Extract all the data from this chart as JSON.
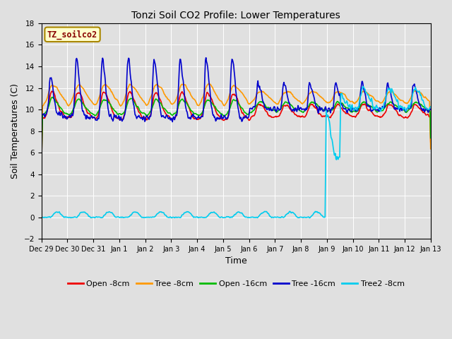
{
  "title": "Tonzi Soil CO2 Profile: Lower Temperatures",
  "xlabel": "Time",
  "ylabel": "Soil Temperatures (C)",
  "watermark": "TZ_soilco2",
  "ylim": [
    -2,
    18
  ],
  "yticks": [
    -2,
    0,
    2,
    4,
    6,
    8,
    10,
    12,
    14,
    16,
    18
  ],
  "bg_color": "#e0e0e0",
  "series": {
    "open_8cm": {
      "label": "Open -8cm",
      "color": "#ee0000",
      "lw": 1.2
    },
    "tree_8cm": {
      "label": "Tree -8cm",
      "color": "#ff9900",
      "lw": 1.2
    },
    "open_16cm": {
      "label": "Open -16cm",
      "color": "#00bb00",
      "lw": 1.2
    },
    "tree_16cm": {
      "label": "Tree -16cm",
      "color": "#0000cc",
      "lw": 1.2
    },
    "tree2_8cm": {
      "label": "Tree2 -8cm",
      "color": "#00ccee",
      "lw": 1.2
    }
  },
  "tick_labels": [
    "Dec 29",
    "Dec 30",
    "Dec 31",
    "Jan 1",
    "Jan 2",
    "Jan 3",
    "Jan 4",
    "Jan 5",
    "Jan 6",
    "Jan 7",
    "Jan 8",
    "Jan 9",
    "Jan 10",
    "Jan 11",
    "Jan 12",
    "Jan 13"
  ],
  "tick_positions": [
    0,
    1,
    2,
    3,
    4,
    5,
    6,
    7,
    8,
    9,
    10,
    11,
    12,
    13,
    14,
    15
  ]
}
